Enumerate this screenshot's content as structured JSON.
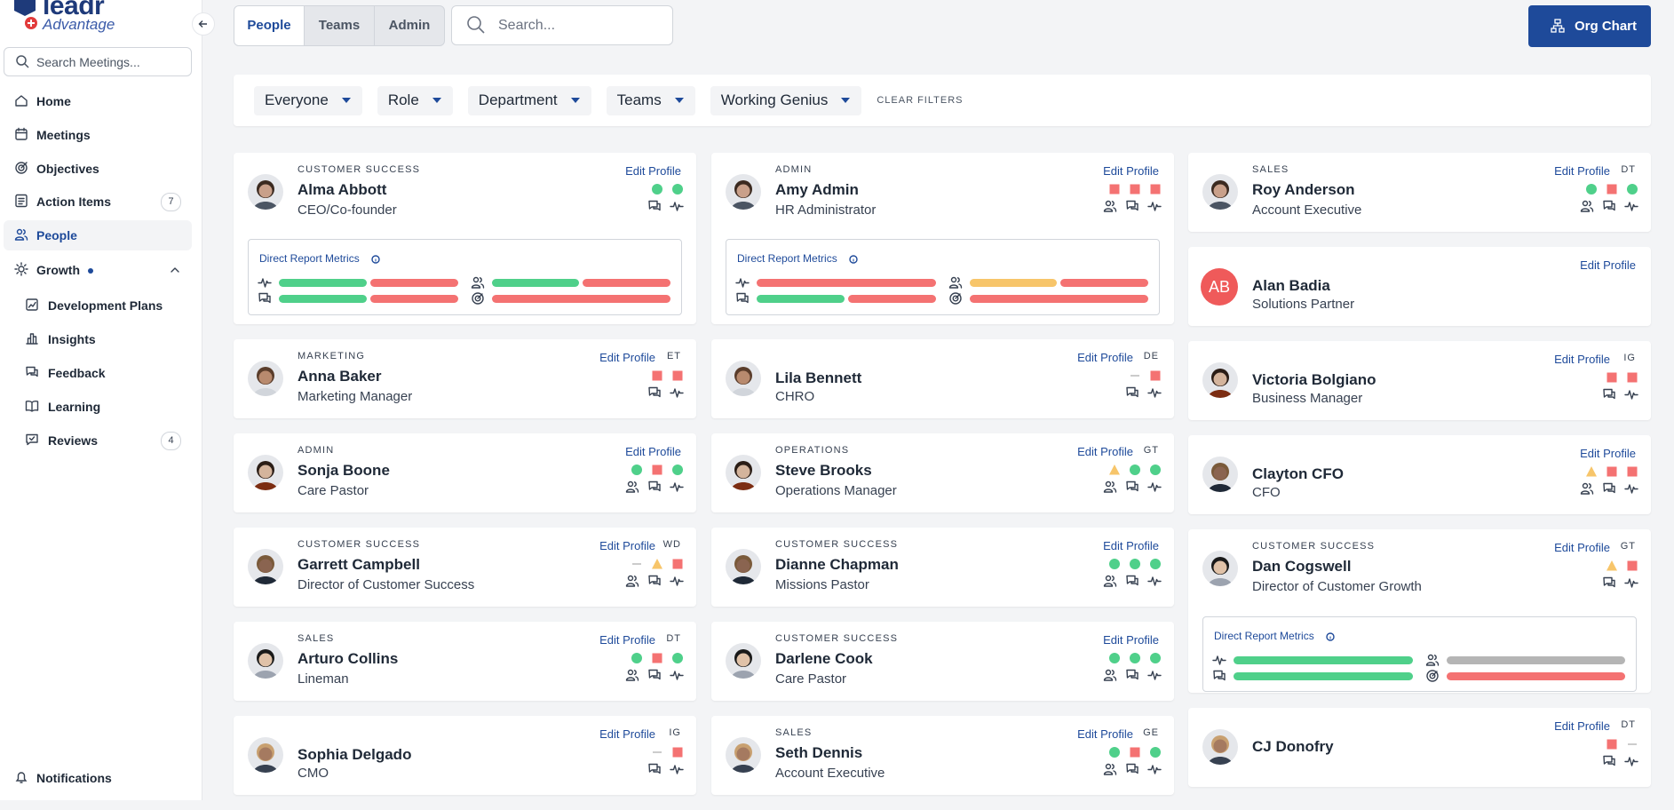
{
  "logo": {
    "name": "leadr",
    "tagline": "Advantage"
  },
  "sidebar": {
    "search_placeholder": "Search Meetings...",
    "nav": [
      {
        "label": "Home",
        "icon": "home"
      },
      {
        "label": "Meetings",
        "icon": "calendar"
      },
      {
        "label": "Objectives",
        "icon": "target"
      },
      {
        "label": "Action Items",
        "icon": "list",
        "badge": "7"
      },
      {
        "label": "People",
        "icon": "people",
        "active": true
      },
      {
        "label": "Growth",
        "icon": "sun",
        "dot": true,
        "expanded": true
      }
    ],
    "growth_items": [
      {
        "label": "Development Plans",
        "icon": "chart"
      },
      {
        "label": "Insights",
        "icon": "bars"
      },
      {
        "label": "Feedback",
        "icon": "chat"
      },
      {
        "label": "Learning",
        "icon": "book"
      },
      {
        "label": "Reviews",
        "icon": "review",
        "badge": "4"
      }
    ],
    "footer": "Notifications"
  },
  "header": {
    "tabs": [
      "People",
      "Teams",
      "Admin"
    ],
    "active_tab": 0,
    "search_placeholder": "Search...",
    "button": "Org Chart"
  },
  "filters": {
    "items": [
      "Everyone",
      "Role",
      "Department",
      "Teams",
      "Working Genius"
    ],
    "clear": "CLEAR FILTERS"
  },
  "card_labels": {
    "edit": "Edit Profile",
    "metrics_title": "Direct Report Metrics"
  },
  "columns": [
    [
      {
        "department": "CUSTOMER SUCCESS",
        "name": "Alma Abbott",
        "title": "CEO/Co-founder",
        "statuses": [
          "green",
          "green"
        ],
        "metrics": [
          [
            "green",
            "red"
          ],
          [
            "green",
            "red"
          ],
          [
            "green",
            "red"
          ],
          [
            "red"
          ]
        ]
      },
      {
        "department": "MARKETING",
        "name": "Anna Baker",
        "title": "Marketing Manager",
        "genius": "ET",
        "statuses": [
          "red",
          "red"
        ]
      },
      {
        "department": "ADMIN",
        "name": "Sonja Boone",
        "title": "Care Pastor",
        "statuses": [
          "green",
          "red",
          "green"
        ]
      },
      {
        "department": "CUSTOMER SUCCESS",
        "name": "Garrett Campbell",
        "title": "Director of Customer Success",
        "genius": "WD",
        "statuses": [
          "dash",
          "yellow",
          "red"
        ]
      },
      {
        "department": "SALES",
        "name": "Arturo Collins",
        "title": "Lineman",
        "genius": "DT",
        "statuses": [
          "green",
          "red",
          "green"
        ]
      },
      {
        "name": "Sophia Delgado",
        "title": "CMO",
        "genius": "IG",
        "statuses": [
          "dash",
          "red"
        ]
      }
    ],
    [
      {
        "department": "ADMIN",
        "name": "Amy Admin",
        "title": "HR Administrator",
        "statuses": [
          "red",
          "red",
          "red"
        ],
        "metrics": [
          [
            "red"
          ],
          [
            "yellow",
            "red"
          ],
          [
            "green",
            "red"
          ],
          [
            "red"
          ]
        ]
      },
      {
        "name": "Lila Bennett",
        "title": "CHRO",
        "genius": "DE",
        "statuses": [
          "dash",
          "red"
        ]
      },
      {
        "department": "OPERATIONS",
        "name": "Steve Brooks",
        "title": "Operations Manager",
        "genius": "GT",
        "statuses": [
          "yellow",
          "green",
          "green"
        ]
      },
      {
        "department": "CUSTOMER SUCCESS",
        "name": "Dianne Chapman",
        "title": "Missions Pastor",
        "statuses": [
          "green",
          "green",
          "green"
        ]
      },
      {
        "department": "CUSTOMER SUCCESS",
        "name": "Darlene Cook",
        "title": "Care Pastor",
        "statuses": [
          "green",
          "green",
          "green"
        ]
      },
      {
        "department": "SALES",
        "name": "Seth Dennis",
        "title": "Account Executive",
        "genius": "GE",
        "statuses": [
          "green",
          "red",
          "green"
        ]
      }
    ],
    [
      {
        "department": "SALES",
        "name": "Roy Anderson",
        "title": "Account Executive",
        "genius": "DT",
        "statuses": [
          "green",
          "red",
          "green"
        ]
      },
      {
        "name": "Alan Badia",
        "initials": "AB",
        "title": "Solutions Partner",
        "statuses": []
      },
      {
        "name": "Victoria Bolgiano",
        "title": "Business Manager",
        "genius": "IG",
        "statuses": [
          "red",
          "red"
        ]
      },
      {
        "name": "Clayton CFO",
        "title": "CFO",
        "statuses": [
          "yellow",
          "red",
          "red"
        ]
      },
      {
        "department": "CUSTOMER SUCCESS",
        "name": "Dan Cogswell",
        "title": "Director of Customer Growth",
        "genius": "GT",
        "statuses": [
          "yellow",
          "red"
        ],
        "metrics": [
          [
            "green"
          ],
          [
            "gray"
          ],
          [
            "green"
          ],
          [
            "red"
          ]
        ]
      },
      {
        "name": "CJ Donofry",
        "genius": "DT",
        "statuses": [
          "red",
          "dash"
        ]
      }
    ]
  ]
}
